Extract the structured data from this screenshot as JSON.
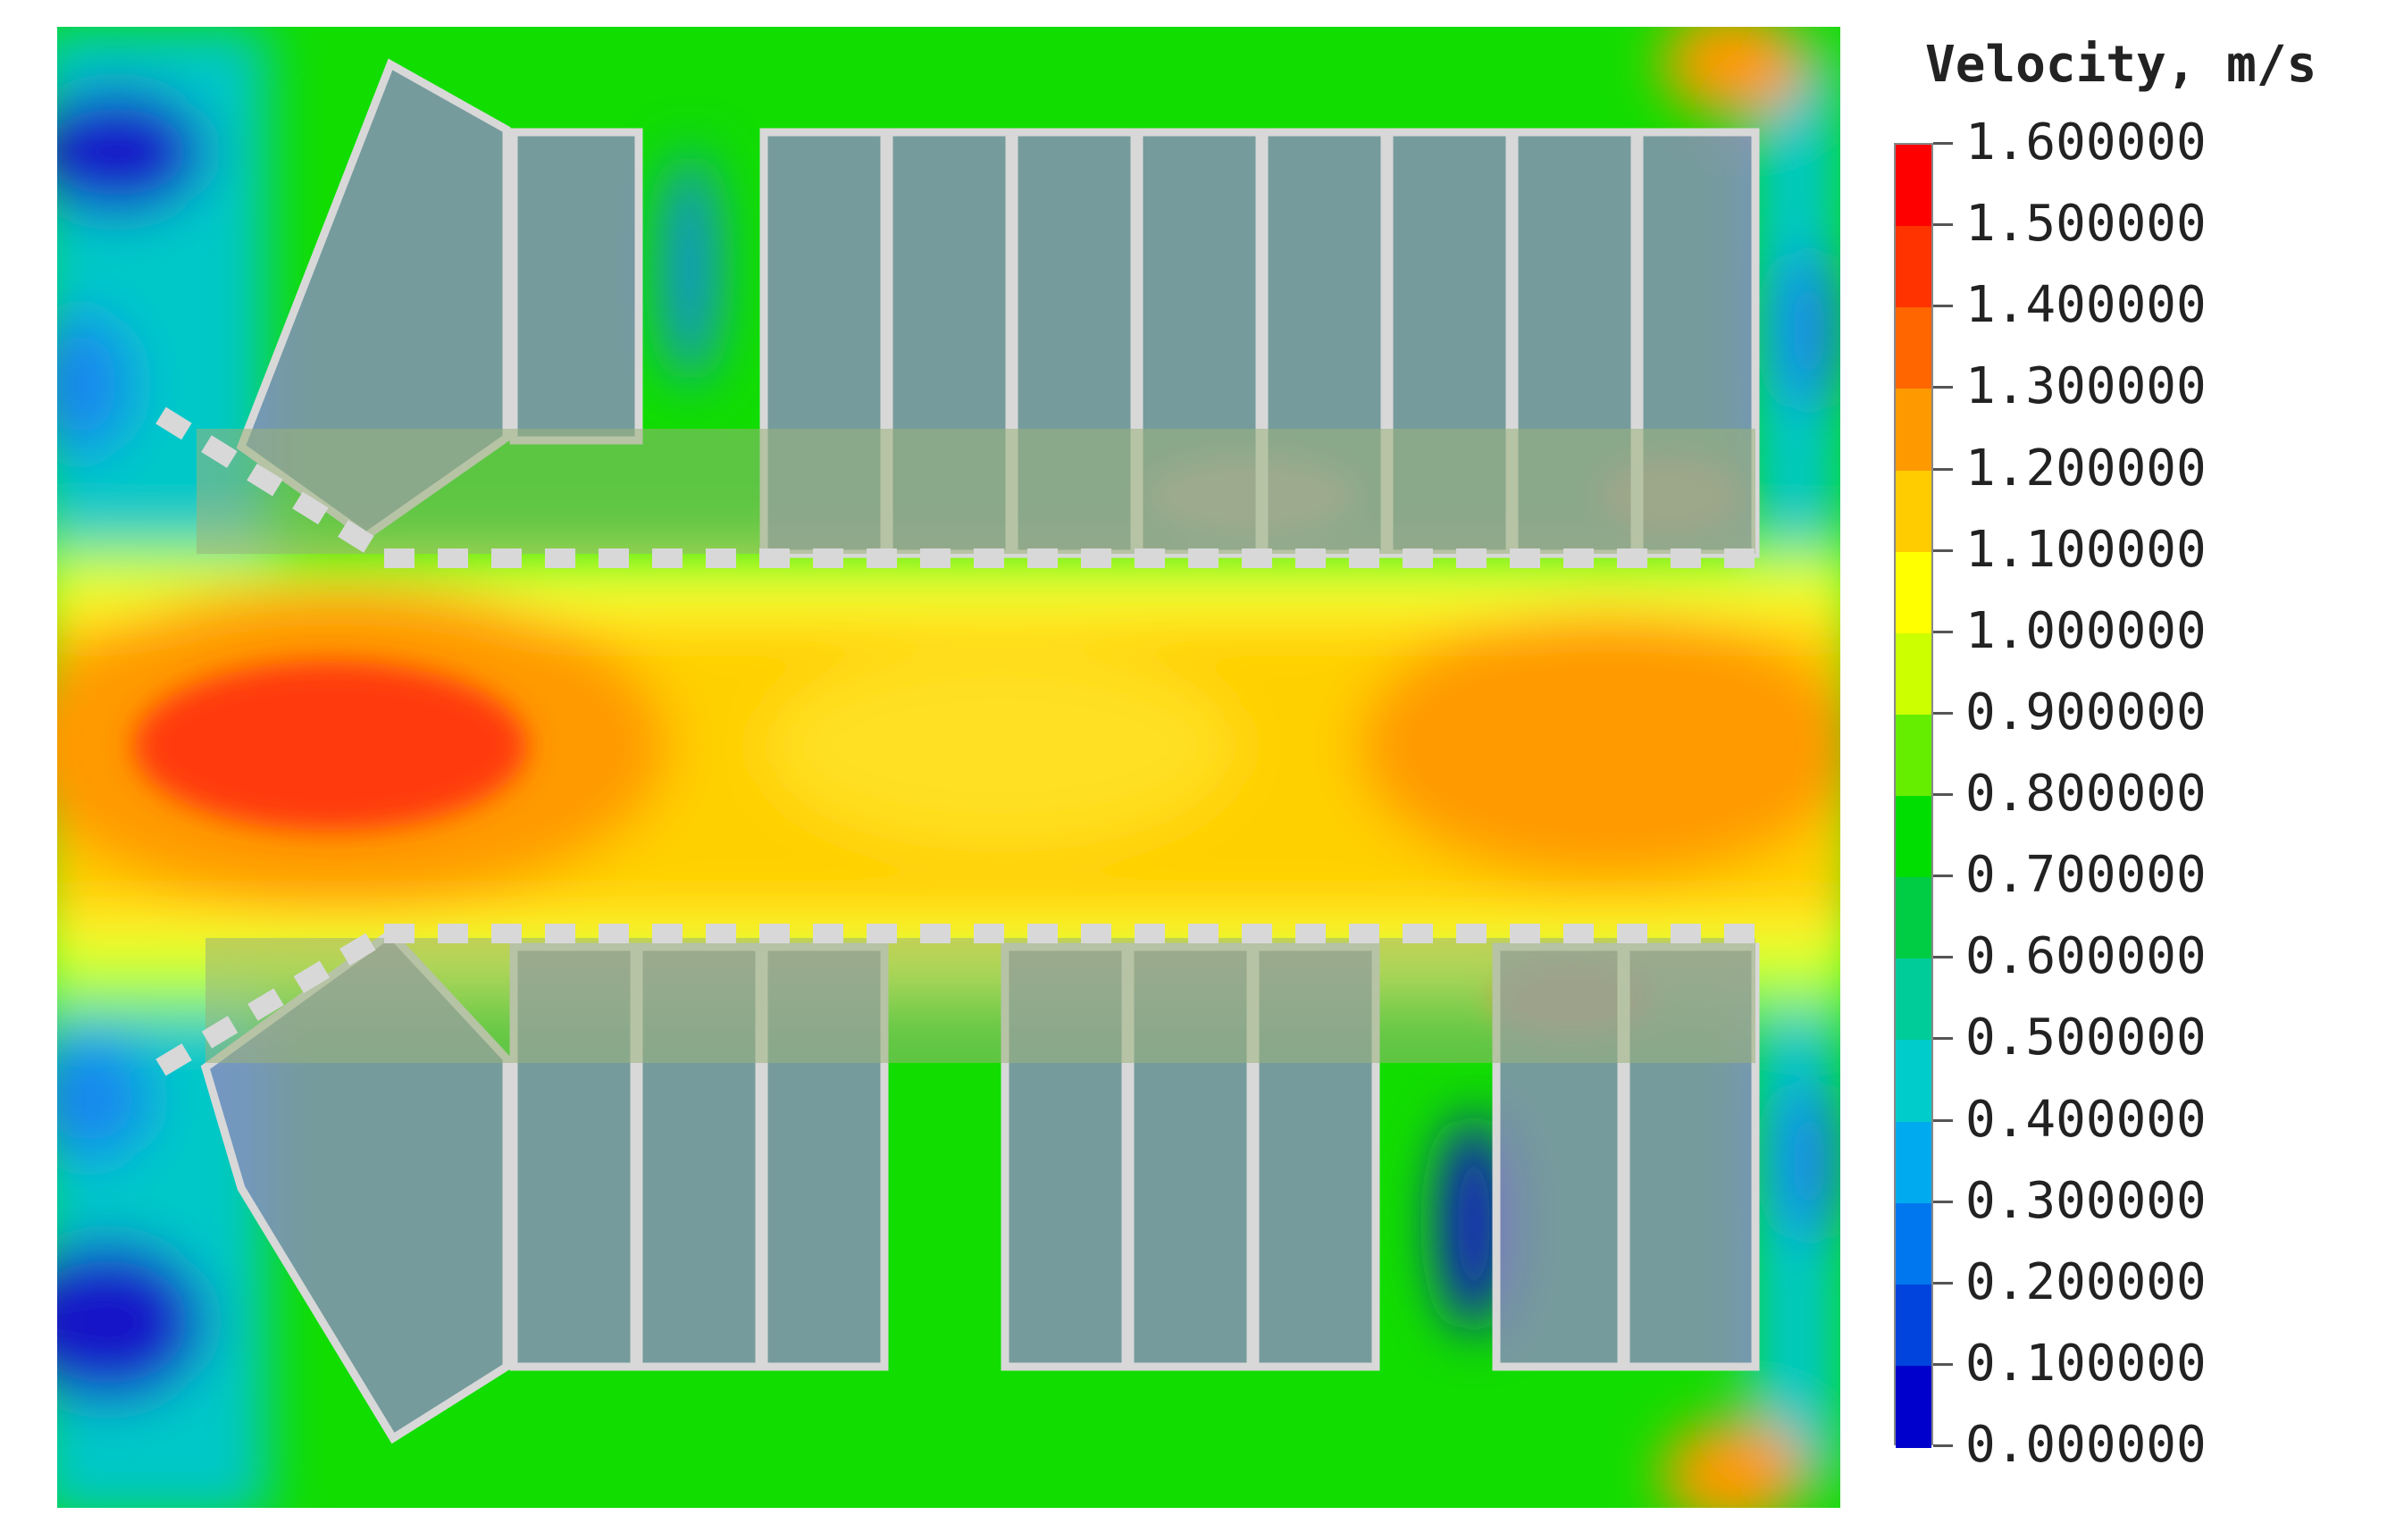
{
  "legend": {
    "title": "Velocity, m/s",
    "labels": [
      "1.600000",
      "1.500000",
      "1.400000",
      "1.300000",
      "1.200000",
      "1.100000",
      "1.000000",
      "0.900000",
      "0.800000",
      "0.700000",
      "0.600000",
      "0.500000",
      "0.400000",
      "0.300000",
      "0.200000",
      "0.100000",
      "0.000000"
    ],
    "colors": [
      "#ff0000",
      "#ff3300",
      "#ff6600",
      "#ff9900",
      "#ffcc00",
      "#ffff00",
      "#ccff00",
      "#66ee00",
      "#00dd00",
      "#00cc44",
      "#00cc99",
      "#00cccc",
      "#00aaee",
      "#0077ee",
      "#0044dd",
      "#0000cc"
    ]
  },
  "colors": {
    "fast_core": "#ff3b10",
    "high": "#ff9a00",
    "mid_high": "#ffd000",
    "mid": "#ffff30",
    "mid_low": "#aaff30",
    "low": "#11dd00",
    "lower": "#00cc99",
    "very_low": "#1888ee",
    "stagnant": "#1414c8",
    "structure_fill": "#8c8cc0",
    "structure_outline": "#d8d8d8"
  }
}
